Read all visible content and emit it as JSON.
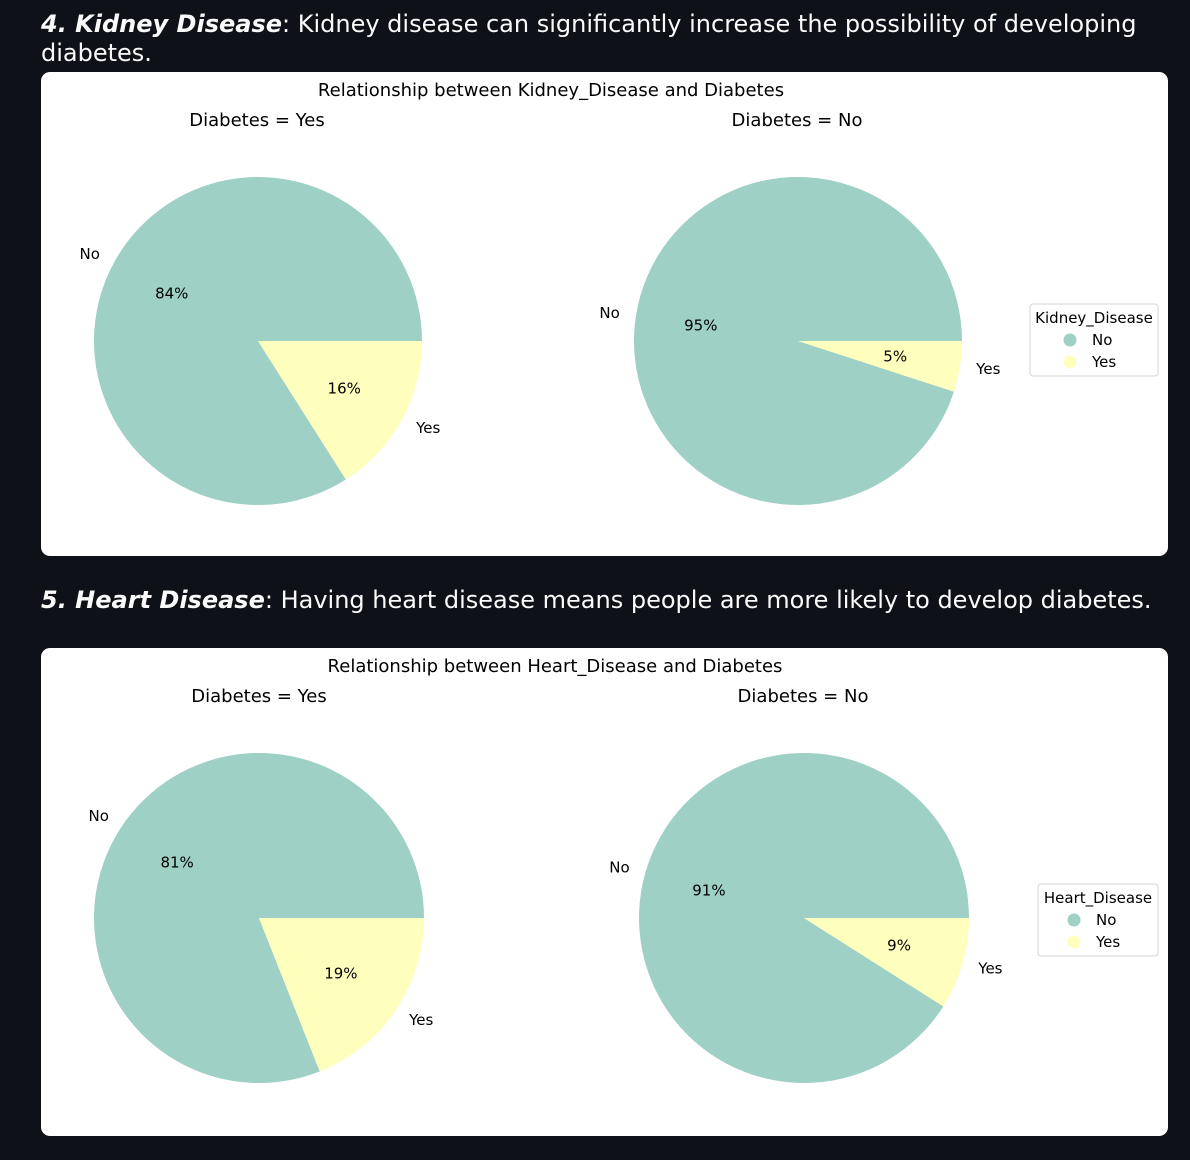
{
  "sections": [
    {
      "heading": {
        "number": "4. ",
        "term": "Kidney Disease",
        "text": ": Kidney disease can significantly increase the possibility of developing diabetes."
      }
    },
    {
      "heading": {
        "number": "5. ",
        "term": "Heart Disease",
        "text": ": Having heart disease means people are more likely to develop diabetes."
      }
    }
  ],
  "colors": {
    "no": "#9ed0c5",
    "yes": "#ffffbd"
  },
  "chart_data": [
    {
      "type": "pie",
      "title": "Relationship between Kidney_Disease and Diabetes",
      "legend": {
        "title": "Kidney_Disease",
        "entries": [
          "No",
          "Yes"
        ],
        "placement": "right"
      },
      "subplots": [
        {
          "title": "Diabetes = Yes",
          "labels": [
            "No",
            "Yes"
          ],
          "values": [
            84,
            16
          ],
          "pct_labels": [
            "84%",
            "16%"
          ]
        },
        {
          "title": "Diabetes = No",
          "labels": [
            "No",
            "Yes"
          ],
          "values": [
            95,
            5
          ],
          "pct_labels": [
            "95%",
            "5%"
          ]
        }
      ]
    },
    {
      "type": "pie",
      "title": "Relationship between Heart_Disease and Diabetes",
      "legend": {
        "title": "Heart_Disease",
        "entries": [
          "No",
          "Yes"
        ],
        "placement": "right"
      },
      "subplots": [
        {
          "title": "Diabetes = Yes",
          "labels": [
            "No",
            "Yes"
          ],
          "values": [
            81,
            19
          ],
          "pct_labels": [
            "81%",
            "19%"
          ]
        },
        {
          "title": "Diabetes = No",
          "labels": [
            "No",
            "Yes"
          ],
          "values": [
            91,
            9
          ],
          "pct_labels": [
            "91%",
            "9%"
          ]
        }
      ]
    }
  ]
}
